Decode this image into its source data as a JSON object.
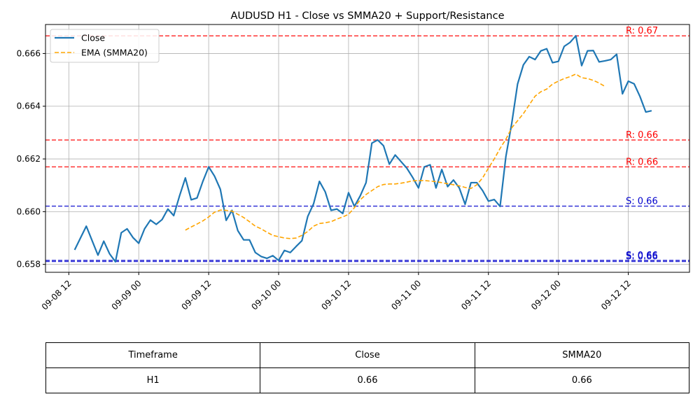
{
  "chart_data": {
    "type": "line",
    "title": "AUDUSD H1 - Close vs SMMA20 + Support/Resistance",
    "xlabel": "",
    "ylabel": "",
    "x_ticks": [
      "09-08 12",
      "09-09 00",
      "09-09 12",
      "09-10 00",
      "09-10 12",
      "09-11 00",
      "09-11 12",
      "09-12 00",
      "09-12 12"
    ],
    "y_ticks": [
      "0.658",
      "0.660",
      "0.662",
      "0.664",
      "0.666"
    ],
    "ylim": [
      0.6577,
      0.6671
    ],
    "xlim_hours": [
      -4,
      106.5
    ],
    "grid": true,
    "legend_position": "upper-left",
    "series": [
      {
        "name": "Close",
        "color": "#1f77b4",
        "style": "solid",
        "start_hour": 1,
        "values": [
          0.65855,
          0.659,
          0.65945,
          0.6589,
          0.65835,
          0.65888,
          0.6584,
          0.6581,
          0.6592,
          0.65935,
          0.65902,
          0.6588,
          0.65935,
          0.65968,
          0.65952,
          0.6597,
          0.6601,
          0.65985,
          0.6606,
          0.66128,
          0.66045,
          0.66052,
          0.66115,
          0.6617,
          0.66135,
          0.66085,
          0.65967,
          0.66005,
          0.65928,
          0.65893,
          0.65893,
          0.65845,
          0.6583,
          0.65823,
          0.65833,
          0.65815,
          0.65853,
          0.65845,
          0.65868,
          0.6589,
          0.65982,
          0.6603,
          0.66115,
          0.66075,
          0.66005,
          0.6601,
          0.65993,
          0.66072,
          0.6602,
          0.6606,
          0.6611,
          0.6626,
          0.66272,
          0.6625,
          0.6618,
          0.66215,
          0.6619,
          0.66165,
          0.6613,
          0.6609,
          0.6617,
          0.66178,
          0.6609,
          0.6616,
          0.66095,
          0.6612,
          0.6609,
          0.66028,
          0.6611,
          0.6611,
          0.6608,
          0.6604,
          0.66046,
          0.6602,
          0.6621,
          0.66335,
          0.66484,
          0.66557,
          0.66588,
          0.66577,
          0.6661,
          0.66618,
          0.66565,
          0.6657,
          0.66627,
          0.66642,
          0.66667,
          0.66554,
          0.6661,
          0.66611,
          0.66568,
          0.66572,
          0.66577,
          0.66597,
          0.66447,
          0.66495,
          0.66485,
          0.66437,
          0.66378,
          0.66383
        ]
      },
      {
        "name": "EMA (SMMA20)",
        "color": "#ffa500",
        "style": "dashed",
        "start_hour": 20,
        "values": [
          0.6593,
          0.65942,
          0.65953,
          0.65965,
          0.6598,
          0.65998,
          0.66006,
          0.66005,
          0.66002,
          0.6599,
          0.65978,
          0.65962,
          0.65945,
          0.65935,
          0.65922,
          0.6591,
          0.65905,
          0.659,
          0.65898,
          0.659,
          0.6591,
          0.65925,
          0.65945,
          0.65955,
          0.65958,
          0.65962,
          0.65972,
          0.6598,
          0.6599,
          0.66015,
          0.66045,
          0.66065,
          0.6608,
          0.66095,
          0.66103,
          0.66105,
          0.66105,
          0.66108,
          0.66112,
          0.66117,
          0.66118,
          0.66118,
          0.66116,
          0.66114,
          0.6611,
          0.66106,
          0.66102,
          0.66098,
          0.66092,
          0.66088,
          0.66102,
          0.66128,
          0.66165,
          0.662,
          0.6624,
          0.66275,
          0.66318,
          0.66345,
          0.66372,
          0.66405,
          0.66438,
          0.66455,
          0.66465,
          0.66484,
          0.66495,
          0.66505,
          0.66512,
          0.66522,
          0.66508,
          0.66505,
          0.66498,
          0.66488,
          0.66475
        ]
      }
    ],
    "levels": [
      {
        "kind": "resistance",
        "value": 0.66667,
        "label": "R: 0.67",
        "color": "#ff0000"
      },
      {
        "kind": "resistance",
        "value": 0.66272,
        "label": "R: 0.66",
        "color": "#ff0000"
      },
      {
        "kind": "resistance",
        "value": 0.6617,
        "label": "R: 0.66",
        "color": "#ff0000"
      },
      {
        "kind": "support",
        "value": 0.66021,
        "label": "S: 0.66",
        "color": "#0000cc"
      },
      {
        "kind": "support",
        "value": 0.65815,
        "label": "S: 0.66",
        "color": "#0000cc"
      },
      {
        "kind": "support",
        "value": 0.65811,
        "label": "S: 0.66",
        "color": "#0000cc"
      }
    ]
  },
  "table": {
    "headers": [
      "Timeframe",
      "Close",
      "SMMA20"
    ],
    "rows": [
      [
        "H1",
        "0.66",
        "0.66"
      ]
    ]
  },
  "colors": {
    "grid": "#b0b0b0",
    "axes": "#000000"
  }
}
